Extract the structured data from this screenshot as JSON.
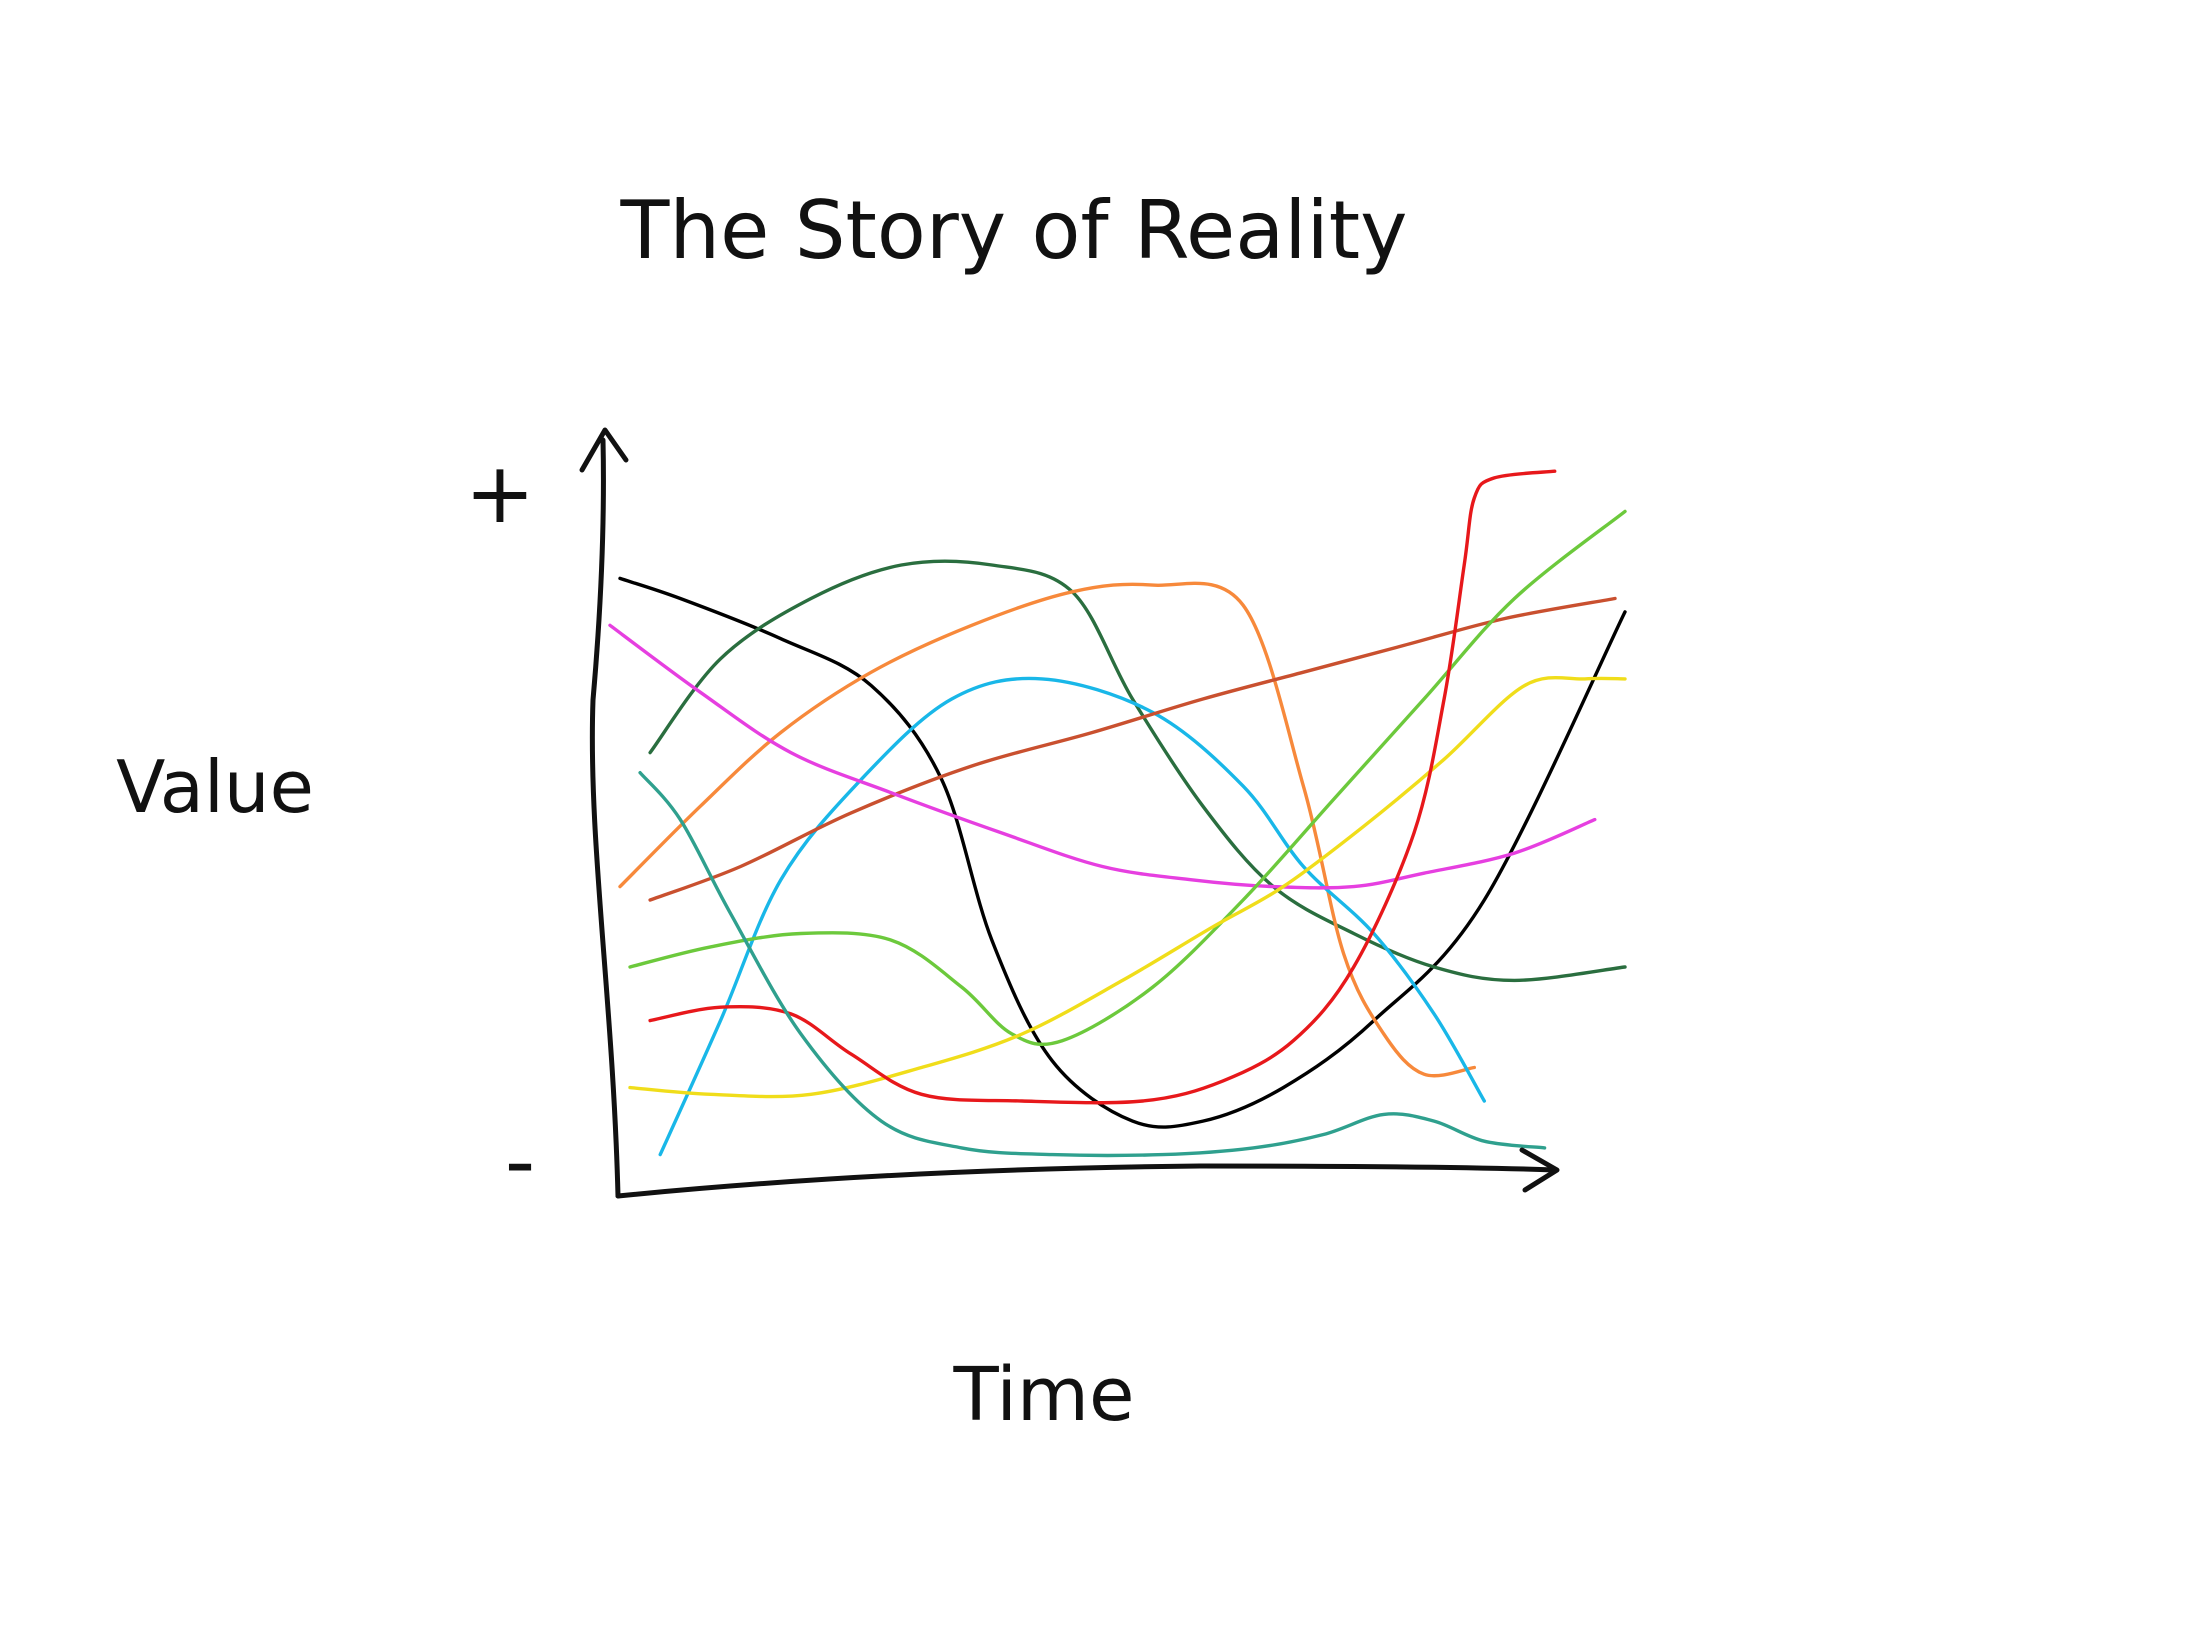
{
  "chart_data": {
    "type": "line",
    "title": "The Story of Reality",
    "xlabel": "Time",
    "ylabel": "Value",
    "y_max_label": "+",
    "y_min_label": "-",
    "xlim": [
      0,
      100
    ],
    "ylim": [
      0,
      100
    ],
    "grid": false,
    "legend": "none",
    "series": [
      {
        "color": "#000000",
        "x": [
          0,
          6,
          16,
          25,
          32,
          37,
          43,
          51,
          58,
          66,
          75,
          86,
          100
        ],
        "y": [
          88,
          85,
          79,
          72,
          58,
          34,
          16,
          7,
          7,
          12,
          22,
          40,
          83
        ]
      },
      {
        "color": "#2a6e3f",
        "x": [
          3,
          10,
          19,
          28,
          37,
          45,
          51,
          58,
          65,
          73,
          81,
          89,
          100
        ],
        "y": [
          62,
          76,
          85,
          90,
          90,
          86,
          70,
          54,
          42,
          35,
          30,
          28,
          30
        ]
      },
      {
        "color": "#f7893b",
        "x": [
          0,
          8,
          16,
          25,
          35,
          45,
          53,
          62,
          68,
          72,
          76,
          80,
          85
        ],
        "y": [
          42,
          54,
          65,
          74,
          81,
          86,
          87,
          84,
          57,
          32,
          20,
          14,
          15
        ]
      },
      {
        "color": "#19b7e8",
        "x": [
          4,
          10,
          16,
          24,
          33,
          42,
          53,
          62,
          68,
          75,
          81,
          86
        ],
        "y": [
          2,
          22,
          43,
          58,
          70,
          73,
          68,
          57,
          45,
          35,
          23,
          10
        ]
      },
      {
        "color": "#c9502f",
        "x": [
          3,
          12,
          23,
          35,
          47,
          58,
          68,
          78,
          88,
          99
        ],
        "y": [
          40,
          45,
          53,
          60,
          65,
          70,
          74,
          78,
          82,
          85
        ]
      },
      {
        "color": "#e63fe0",
        "x": [
          -1,
          8,
          17,
          27,
          38,
          48,
          57,
          65,
          73,
          80,
          89,
          97
        ],
        "y": [
          81,
          71,
          62,
          56,
          50,
          45,
          43,
          42,
          42,
          44,
          47,
          52
        ]
      },
      {
        "color": "#6cc93c",
        "x": [
          1,
          9,
          18,
          27,
          34,
          39,
          44,
          53,
          62,
          71,
          80,
          89,
          100
        ],
        "y": [
          30,
          33,
          35,
          34,
          27,
          20,
          19,
          27,
          40,
          55,
          70,
          85,
          98
        ]
      },
      {
        "color": "#f0dd1a",
        "x": [
          1,
          9,
          19,
          30,
          40,
          50,
          59,
          66,
          74,
          82,
          90,
          96,
          100
        ],
        "y": [
          12,
          11,
          11,
          15,
          20,
          28,
          36,
          42,
          51,
          61,
          72,
          73,
          73
        ]
      },
      {
        "color": "#e7181b",
        "x": [
          3,
          10,
          17,
          23,
          30,
          40,
          52,
          60,
          67,
          73,
          79,
          82,
          84,
          85,
          87,
          93
        ],
        "y": [
          22,
          24,
          23,
          17,
          11,
          10,
          10,
          13,
          19,
          30,
          50,
          70,
          90,
          100,
          103,
          104
        ]
      },
      {
        "color": "#2fa08e",
        "x": [
          2,
          6,
          11,
          18,
          26,
          34,
          43,
          54,
          63,
          70,
          76,
          81,
          86,
          92
        ],
        "y": [
          59,
          52,
          38,
          20,
          7,
          3,
          2,
          2,
          3,
          5,
          8,
          7,
          4,
          3
        ]
      }
    ]
  }
}
